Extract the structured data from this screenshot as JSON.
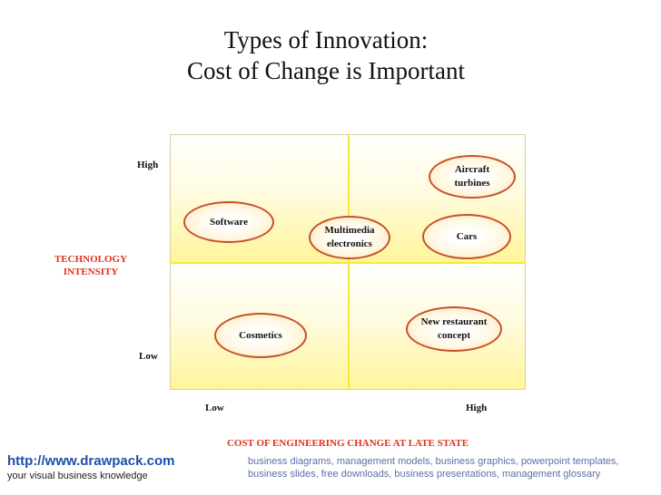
{
  "title": {
    "line1": "Types of Innovation:",
    "line2": "Cost of Change is Important"
  },
  "y_axis": {
    "label_line1": "TECHNOLOGY",
    "label_line2": "INTENSITY",
    "high": "High",
    "low": "Low"
  },
  "x_axis": {
    "label": "COST OF ENGINEERING CHANGE AT LATE STATE",
    "low": "Low",
    "high": "High"
  },
  "bubbles": {
    "software": "Software",
    "multimedia": "Multimedia\nelectronics",
    "aircraft": "Aircraft\nturbines",
    "cars": "Cars",
    "cosmetics": "Cosmetics",
    "restaurant": "New restaurant\nconcept"
  },
  "footer": {
    "url": "http://www.drawpack.com",
    "tagline": "your visual business knowledge",
    "description": "business diagrams, management models, business graphics, powerpoint templates, business slides, free downloads, business presentations, management glossary"
  },
  "colors": {
    "quadrant_fill": "#fff59a",
    "divider": "#f5ea3a",
    "bubble_border": "#c8502a",
    "axis_title": "#e0301e",
    "link": "#1f4fa8"
  }
}
